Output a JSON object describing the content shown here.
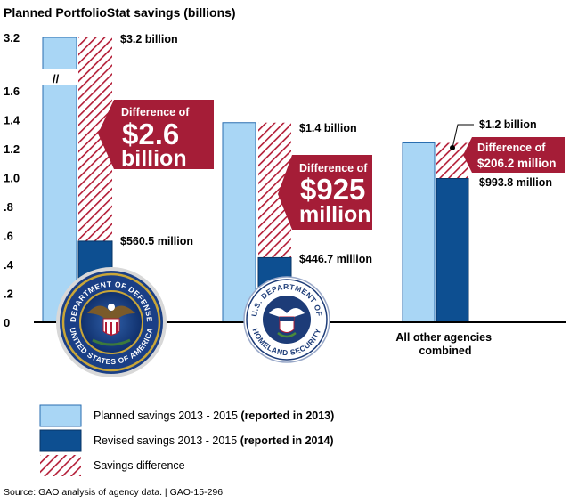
{
  "chart_data": {
    "type": "bar",
    "title": "Planned PortfolioStat savings (billions)",
    "ylabel": "",
    "xlabel": "",
    "ylim": [
      0,
      3.2
    ],
    "axis_break": "//",
    "y_ticks": [
      "0",
      ".2",
      ".4",
      ".6",
      ".8",
      "1.0",
      "1.2",
      "1.4",
      "1.6",
      "3.2"
    ],
    "categories": [
      "Department of Defense",
      "Department of Homeland Security",
      "All other agencies combined"
    ],
    "category_labels": [
      "",
      "",
      "All other agencies\ncombined"
    ],
    "series": [
      {
        "name": "Planned savings 2013 - 2015 (reported in 2013)",
        "values": [
          3.2,
          1.38,
          1.24
        ]
      },
      {
        "name": "Revised savings 2013 - 2015 (reported in 2014)",
        "values": [
          0.5605,
          0.4467,
          0.9938
        ]
      },
      {
        "name": "Savings difference",
        "values": [
          2.6,
          0.925,
          0.2062
        ]
      }
    ],
    "value_labels": {
      "planned": [
        "$3.2 billion",
        "$1.4 billion",
        "$1.2 billion"
      ],
      "revised": [
        "$560.5 million",
        "$446.7 million",
        "$993.8 million"
      ]
    },
    "callouts": [
      {
        "line1": "Difference of",
        "line2": "$2.6",
        "line3": "billion"
      },
      {
        "line1": "Difference of",
        "line2": "$925",
        "line3": "million"
      },
      {
        "line1": "Difference of",
        "line2": "$206.2 million"
      }
    ]
  },
  "legend": [
    {
      "prefix": "Planned savings 2013 - 2015 ",
      "bold": "(reported in 2013)"
    },
    {
      "prefix": "Revised savings 2013 - 2015 ",
      "bold": "(reported in 2014)"
    },
    {
      "prefix": "Savings difference",
      "bold": ""
    }
  ],
  "seals": {
    "dod": {
      "top": "DEPARTMENT OF DEFENSE",
      "bottom": "UNITED STATES OF AMERICA"
    },
    "dhs": {
      "top": "U.S. DEPARTMENT OF",
      "bottom": "HOMELAND SECURITY"
    }
  },
  "source": "Source: GAO analysis of agency data.  |  GAO-15-296",
  "colors": {
    "planned": "#a9d6f5",
    "revised": "#0d4f91",
    "difference": "#b31b35",
    "callout": "#a51d37"
  }
}
